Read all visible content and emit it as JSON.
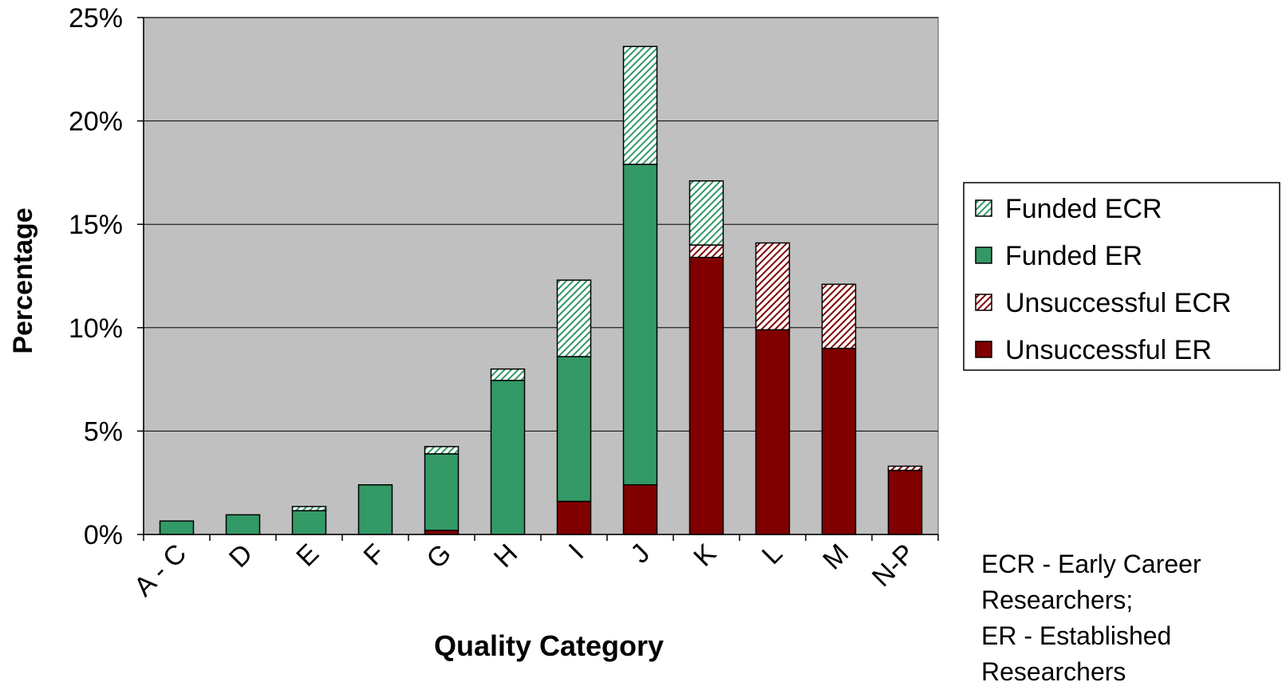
{
  "chart_data": {
    "type": "bar",
    "stacked": true,
    "categories": [
      "A - C",
      "D",
      "E",
      "F",
      "G",
      "H",
      "I",
      "J",
      "K",
      "L",
      "M",
      "N-P"
    ],
    "series": [
      {
        "name": "Unsuccessful ER",
        "color": "#800000",
        "pattern": "solid",
        "values": [
          0,
          0,
          0,
          0,
          0.2,
          0,
          1.6,
          2.4,
          13.4,
          9.9,
          9.0,
          3.1
        ]
      },
      {
        "name": "Unsuccessful ECR",
        "color": "#800000",
        "pattern": "hatched",
        "values": [
          0,
          0,
          0,
          0,
          0,
          0,
          0,
          0,
          0.6,
          4.2,
          3.1,
          0.2
        ]
      },
      {
        "name": "Funded ER",
        "color": "#339966",
        "pattern": "solid",
        "values": [
          0.65,
          0.95,
          1.15,
          2.4,
          3.7,
          7.45,
          7.0,
          15.5,
          0,
          0,
          0,
          0
        ]
      },
      {
        "name": "Funded ECR",
        "color": "#339966",
        "pattern": "hatched",
        "values": [
          0,
          0,
          0.2,
          0,
          0.35,
          0.55,
          3.7,
          5.7,
          3.1,
          0,
          0,
          0
        ]
      }
    ],
    "legend_order": [
      "Funded ECR",
      "Funded ER",
      "Unsuccessful ECR",
      "Unsuccessful ER"
    ],
    "legend_position": "right",
    "xlabel": "Quality Category",
    "ylabel": "Percentage",
    "ylim": [
      0,
      25
    ],
    "yticks": [
      "0%",
      "5%",
      "10%",
      "15%",
      "20%",
      "25%"
    ],
    "ytick_values": [
      0,
      5,
      10,
      15,
      20,
      25
    ],
    "grid": true,
    "plot_background": "#c0c0c0"
  },
  "note": {
    "line1": "ECR - Early Career",
    "line2": "Researchers;",
    "line3": "ER - Established",
    "line4": "Researchers"
  }
}
